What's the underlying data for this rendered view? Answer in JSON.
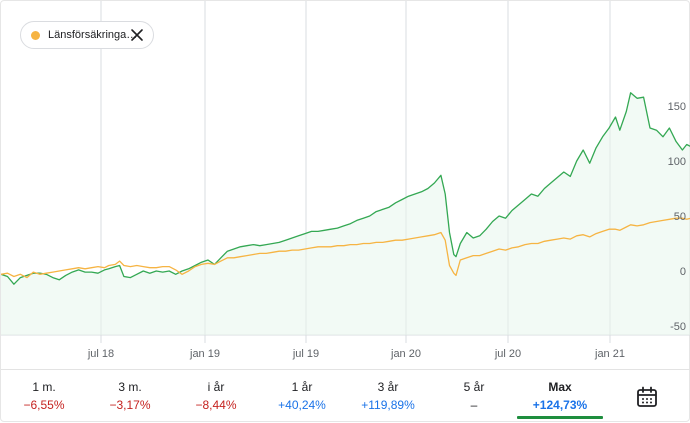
{
  "legend": {
    "label": "Länsförsäkringa…",
    "color": "#f6b443"
  },
  "colors": {
    "green": "#34a853",
    "orange": "#f6b443",
    "grid": "#dadce0",
    "axis_text": "#5f6368"
  },
  "tabs": [
    {
      "label": "1 m.",
      "value": "−6,55%",
      "tone": "neg"
    },
    {
      "label": "3 m.",
      "value": "−3,17%",
      "tone": "neg"
    },
    {
      "label": "i år",
      "value": "−8,44%",
      "tone": "neg"
    },
    {
      "label": "1 år",
      "value": "+40,24%",
      "tone": "pos"
    },
    {
      "label": "3 år",
      "value": "+119,89%",
      "tone": "pos"
    },
    {
      "label": "5 år",
      "value": "–",
      "tone": "neu"
    },
    {
      "label": "Max",
      "value": "+124,73%",
      "tone": "pos",
      "selected": true
    }
  ],
  "calendar_icon": "calendar-icon",
  "chart_data": {
    "type": "line",
    "x_ticks": [
      "jul 18",
      "jan 19",
      "jul 19",
      "jan 20",
      "jul 20",
      "jan 21"
    ],
    "y_ticks": [
      "150",
      "100",
      "50",
      "0",
      "-50"
    ],
    "ylim": [
      -50,
      175
    ],
    "series": [
      {
        "name": "",
        "color": "#34a853",
        "fill": true,
        "points": [
          [
            0,
            -3
          ],
          [
            0.3,
            -5
          ],
          [
            0.6,
            -12
          ],
          [
            0.9,
            -6
          ],
          [
            1.2,
            -4
          ],
          [
            1.5,
            -2
          ],
          [
            1.8,
            -2
          ],
          [
            2.1,
            -3
          ],
          [
            2.4,
            -6
          ],
          [
            2.7,
            -8
          ],
          [
            3.0,
            -4
          ],
          [
            3.3,
            -1
          ],
          [
            3.6,
            1
          ],
          [
            3.9,
            -1
          ],
          [
            4.2,
            -1
          ],
          [
            4.5,
            -2
          ],
          [
            4.8,
            1
          ],
          [
            5.0,
            2
          ],
          [
            5.3,
            4
          ],
          [
            5.5,
            5
          ],
          [
            5.7,
            -5
          ],
          [
            6.0,
            -6
          ],
          [
            6.3,
            -3
          ],
          [
            6.6,
            0
          ],
          [
            6.9,
            -2
          ],
          [
            7.2,
            0
          ],
          [
            7.5,
            -1
          ],
          [
            7.8,
            0
          ],
          [
            8.1,
            -3
          ],
          [
            8.4,
            0
          ],
          [
            8.7,
            2
          ],
          [
            9.0,
            5
          ],
          [
            9.3,
            8
          ],
          [
            9.6,
            10
          ],
          [
            9.9,
            6
          ],
          [
            10.2,
            12
          ],
          [
            10.5,
            18
          ],
          [
            10.8,
            20
          ],
          [
            11.1,
            22
          ],
          [
            11.4,
            23
          ],
          [
            11.7,
            24
          ],
          [
            12.0,
            23
          ],
          [
            12.3,
            24
          ],
          [
            12.6,
            25
          ],
          [
            12.9,
            26
          ],
          [
            13.2,
            28
          ],
          [
            13.5,
            30
          ],
          [
            13.8,
            32
          ],
          [
            14.1,
            34
          ],
          [
            14.4,
            36
          ],
          [
            14.7,
            36
          ],
          [
            15.0,
            37
          ],
          [
            15.3,
            38
          ],
          [
            15.6,
            39
          ],
          [
            15.9,
            41
          ],
          [
            16.2,
            43
          ],
          [
            16.5,
            46
          ],
          [
            16.8,
            48
          ],
          [
            17.1,
            50
          ],
          [
            17.4,
            54
          ],
          [
            17.7,
            56
          ],
          [
            18.0,
            58
          ],
          [
            18.3,
            62
          ],
          [
            18.6,
            65
          ],
          [
            18.9,
            68
          ],
          [
            19.2,
            70
          ],
          [
            19.5,
            72
          ],
          [
            19.8,
            75
          ],
          [
            20.1,
            80
          ],
          [
            20.4,
            87
          ],
          [
            20.6,
            70
          ],
          [
            20.8,
            35
          ],
          [
            21.0,
            15
          ],
          [
            21.1,
            13
          ],
          [
            21.3,
            25
          ],
          [
            21.6,
            35
          ],
          [
            21.9,
            30
          ],
          [
            22.2,
            32
          ],
          [
            22.5,
            38
          ],
          [
            22.8,
            45
          ],
          [
            23.1,
            50
          ],
          [
            23.4,
            48
          ],
          [
            23.7,
            55
          ],
          [
            24.0,
            60
          ],
          [
            24.3,
            65
          ],
          [
            24.6,
            70
          ],
          [
            24.9,
            68
          ],
          [
            25.2,
            75
          ],
          [
            25.5,
            80
          ],
          [
            25.8,
            85
          ],
          [
            26.1,
            90
          ],
          [
            26.4,
            86
          ],
          [
            26.7,
            100
          ],
          [
            27.0,
            110
          ],
          [
            27.3,
            98
          ],
          [
            27.6,
            112
          ],
          [
            27.9,
            122
          ],
          [
            28.2,
            130
          ],
          [
            28.5,
            140
          ],
          [
            28.7,
            128
          ],
          [
            29.0,
            145
          ],
          [
            29.2,
            162
          ],
          [
            29.5,
            157
          ],
          [
            29.8,
            158
          ],
          [
            30.1,
            130
          ],
          [
            30.4,
            128
          ],
          [
            30.7,
            122
          ],
          [
            31.0,
            130
          ],
          [
            31.3,
            118
          ],
          [
            31.6,
            110
          ],
          [
            31.8,
            115
          ],
          [
            32,
            113
          ]
        ]
      },
      {
        "name": "Länsförsäkringa…",
        "color": "#f6b443",
        "fill": false,
        "points": [
          [
            0,
            -3
          ],
          [
            0.3,
            -2
          ],
          [
            0.6,
            -5
          ],
          [
            0.9,
            -3
          ],
          [
            1.2,
            -6
          ],
          [
            1.5,
            -1
          ],
          [
            1.8,
            -3
          ],
          [
            2.1,
            -2
          ],
          [
            2.4,
            -1
          ],
          [
            2.7,
            0
          ],
          [
            3.0,
            1
          ],
          [
            3.3,
            2
          ],
          [
            3.6,
            3
          ],
          [
            3.9,
            2
          ],
          [
            4.2,
            3
          ],
          [
            4.5,
            4
          ],
          [
            4.8,
            3
          ],
          [
            5.0,
            5
          ],
          [
            5.3,
            6
          ],
          [
            5.5,
            9
          ],
          [
            5.7,
            5
          ],
          [
            6.0,
            4
          ],
          [
            6.3,
            5
          ],
          [
            6.6,
            4
          ],
          [
            6.9,
            3
          ],
          [
            7.2,
            3
          ],
          [
            7.5,
            4
          ],
          [
            7.8,
            4
          ],
          [
            8.1,
            1
          ],
          [
            8.4,
            -3
          ],
          [
            8.7,
            0
          ],
          [
            9.0,
            4
          ],
          [
            9.3,
            6
          ],
          [
            9.6,
            7
          ],
          [
            9.9,
            6
          ],
          [
            10.2,
            9
          ],
          [
            10.5,
            12
          ],
          [
            10.8,
            12
          ],
          [
            11.1,
            13
          ],
          [
            11.4,
            14
          ],
          [
            11.7,
            15
          ],
          [
            12.0,
            16
          ],
          [
            12.3,
            16
          ],
          [
            12.6,
            17
          ],
          [
            12.9,
            18
          ],
          [
            13.2,
            18
          ],
          [
            13.5,
            19
          ],
          [
            13.8,
            19
          ],
          [
            14.1,
            20
          ],
          [
            14.4,
            21
          ],
          [
            14.7,
            22
          ],
          [
            15.0,
            22
          ],
          [
            15.3,
            22
          ],
          [
            15.6,
            23
          ],
          [
            15.9,
            23
          ],
          [
            16.2,
            24
          ],
          [
            16.5,
            24
          ],
          [
            16.8,
            25
          ],
          [
            17.1,
            25
          ],
          [
            17.4,
            26
          ],
          [
            17.7,
            26
          ],
          [
            18.0,
            27
          ],
          [
            18.3,
            28
          ],
          [
            18.6,
            28
          ],
          [
            18.9,
            29
          ],
          [
            19.2,
            30
          ],
          [
            19.5,
            31
          ],
          [
            19.8,
            32
          ],
          [
            20.1,
            33
          ],
          [
            20.4,
            35
          ],
          [
            20.6,
            28
          ],
          [
            20.8,
            5
          ],
          [
            21.0,
            -2
          ],
          [
            21.1,
            -4
          ],
          [
            21.3,
            10
          ],
          [
            21.6,
            12
          ],
          [
            21.9,
            14
          ],
          [
            22.2,
            14
          ],
          [
            22.5,
            16
          ],
          [
            22.8,
            18
          ],
          [
            23.1,
            20
          ],
          [
            23.4,
            19
          ],
          [
            23.7,
            21
          ],
          [
            24.0,
            22
          ],
          [
            24.3,
            24
          ],
          [
            24.6,
            25
          ],
          [
            24.9,
            25
          ],
          [
            25.2,
            27
          ],
          [
            25.5,
            28
          ],
          [
            25.8,
            29
          ],
          [
            26.1,
            30
          ],
          [
            26.4,
            29
          ],
          [
            26.7,
            32
          ],
          [
            27.0,
            33
          ],
          [
            27.3,
            31
          ],
          [
            27.6,
            34
          ],
          [
            27.9,
            36
          ],
          [
            28.2,
            38
          ],
          [
            28.5,
            38
          ],
          [
            28.7,
            37
          ],
          [
            29.0,
            40
          ],
          [
            29.2,
            42
          ],
          [
            29.5,
            41
          ],
          [
            29.8,
            42
          ],
          [
            30.1,
            44
          ],
          [
            30.4,
            45
          ],
          [
            30.7,
            46
          ],
          [
            31.0,
            47
          ],
          [
            31.3,
            48
          ],
          [
            31.6,
            48
          ],
          [
            31.8,
            47
          ],
          [
            32,
            48
          ]
        ]
      }
    ]
  }
}
